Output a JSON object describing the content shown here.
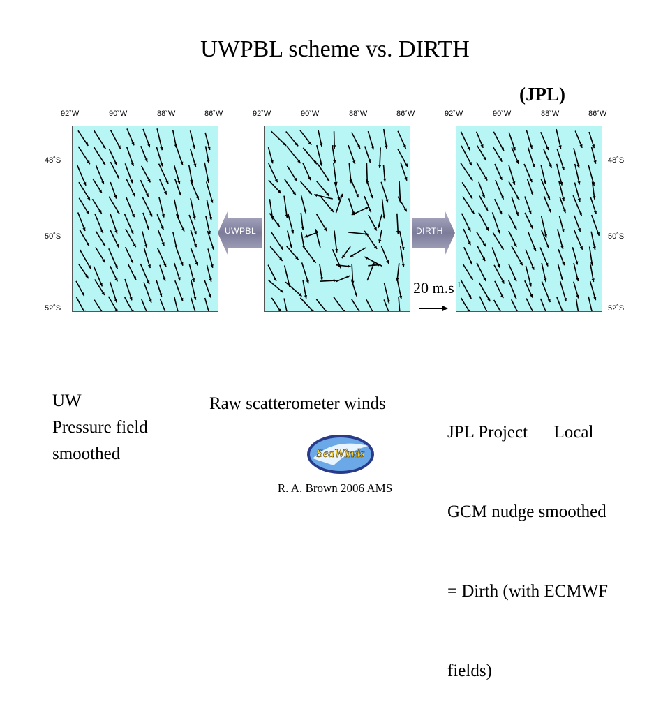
{
  "title": "UWPBL scheme vs. DIRTH",
  "jpl_tag": "(JPL)",
  "panels": {
    "lon_labels": [
      "92˚W",
      "90˚W",
      "88˚W",
      "86˚W"
    ],
    "lat_labels": [
      "48˚S",
      "50˚S",
      "52˚S"
    ],
    "left_arrow_label": "UWPBL",
    "right_arrow_label": "DIRTH",
    "scale_label": "20 m.s",
    "scale_exponent": "-1"
  },
  "captions": {
    "left": [
      "UW",
      "Pressure field",
      "smoothed"
    ],
    "middle": "Raw scatterometer winds",
    "right": [
      "JPL Project      Local",
      "GCM nudge smoothed",
      "= Dirth (with ECMWF",
      "fields)"
    ]
  },
  "logo_text": "SeaWinds",
  "footer": "R. A. Brown 2006 AMS",
  "colors": {
    "panel_bg": "#b8f6f6",
    "arrow_gray": "#8a8aa6"
  }
}
